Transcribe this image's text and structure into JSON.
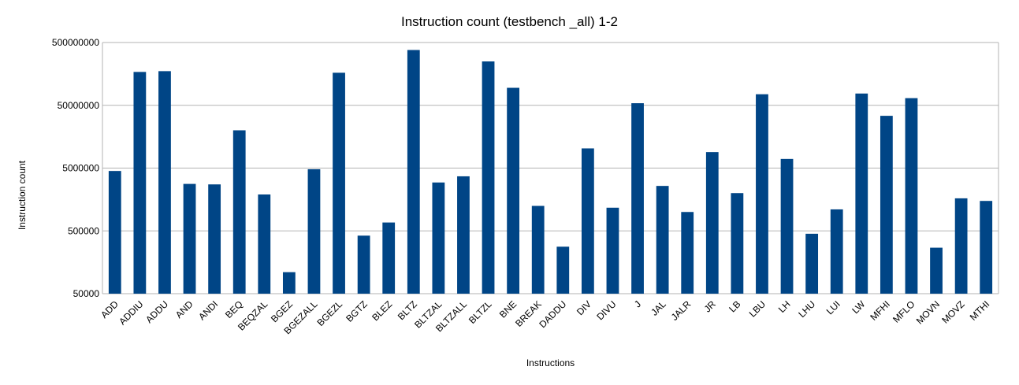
{
  "chart_data": {
    "type": "bar",
    "title": "Instruction count (testbench _all) 1-2",
    "xlabel": "Instructions",
    "ylabel": "Instruction count",
    "y_scale": "log",
    "ylim": [
      50000,
      500000000
    ],
    "y_ticks": [
      "50000",
      "500000",
      "5000000",
      "50000000",
      "500000000"
    ],
    "grid": true,
    "bar_color": "#004586",
    "categories": [
      "ADD",
      "ADDIU",
      "ADDU",
      "AND",
      "ANDI",
      "BEQ",
      "BEQZAL",
      "BGEZ",
      "BGEZALL",
      "BGEZL",
      "BGTZ",
      "BLEZ",
      "BLTZ",
      "BLTZAL",
      "BLTZALL",
      "BLTZL",
      "BNE",
      "BREAK",
      "DADDU",
      "DIV",
      "DIVU",
      "J",
      "JAL",
      "JALR",
      "JR",
      "LB",
      "LBU",
      "LH",
      "LHU",
      "LUI",
      "LW",
      "MFHI",
      "MFLO",
      "MOVN",
      "MOVZ",
      "MTHI"
    ],
    "values": [
      4500000,
      170000000,
      175000000,
      2800000,
      2750000,
      20000000,
      1900000,
      110000,
      4800000,
      165000000,
      420000,
      680000,
      380000000,
      2950000,
      3700000,
      250000000,
      95000000,
      1250000,
      280000,
      10300000,
      1170000,
      54000000,
      2600000,
      1000000,
      9000000,
      2000000,
      75000000,
      7000000,
      450000,
      1100000,
      77000000,
      34000000,
      65000000,
      270000,
      1650000,
      1500000
    ]
  }
}
